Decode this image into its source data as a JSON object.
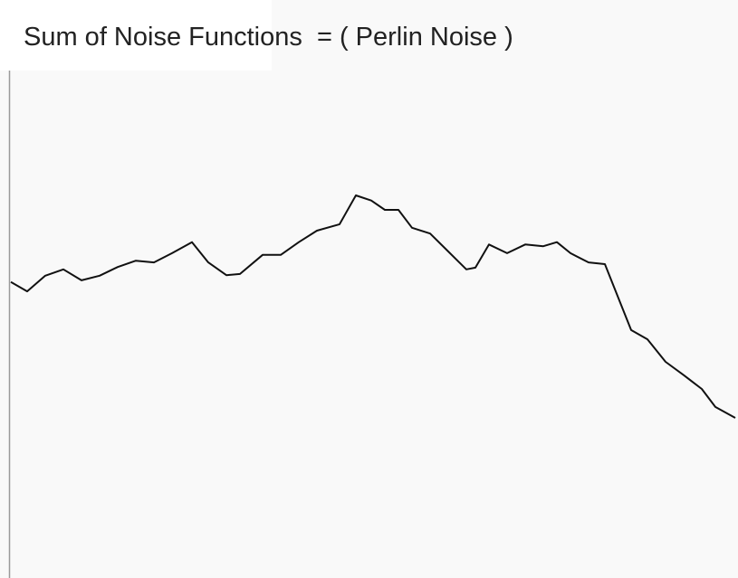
{
  "chart_data": {
    "type": "line",
    "title": "Sum of Noise Functions  = ( Perlin Noise )",
    "x": [
      12,
      30,
      50,
      70,
      90,
      110,
      130,
      150,
      170,
      190,
      212,
      230,
      250,
      265,
      290,
      310,
      330,
      350,
      375,
      393,
      410,
      425,
      440,
      455,
      475,
      495,
      515,
      525,
      540,
      560,
      580,
      600,
      615,
      630,
      650,
      668,
      685,
      697,
      715,
      735,
      755,
      775,
      790,
      812
    ],
    "series": [
      {
        "color": "#111111",
        "values": [
          0.512,
          0.496,
          0.523,
          0.534,
          0.515,
          0.523,
          0.538,
          0.549,
          0.546,
          0.562,
          0.581,
          0.546,
          0.524,
          0.526,
          0.559,
          0.559,
          0.581,
          0.601,
          0.612,
          0.662,
          0.653,
          0.637,
          0.637,
          0.606,
          0.596,
          0.565,
          0.534,
          0.537,
          0.577,
          0.562,
          0.577,
          0.574,
          0.581,
          0.562,
          0.546,
          0.543,
          0.476,
          0.429,
          0.413,
          0.374,
          0.351,
          0.327,
          0.296,
          0.277
        ]
      }
    ],
    "xlim": [
      0,
      815
    ],
    "ylim": [
      0,
      1
    ]
  }
}
